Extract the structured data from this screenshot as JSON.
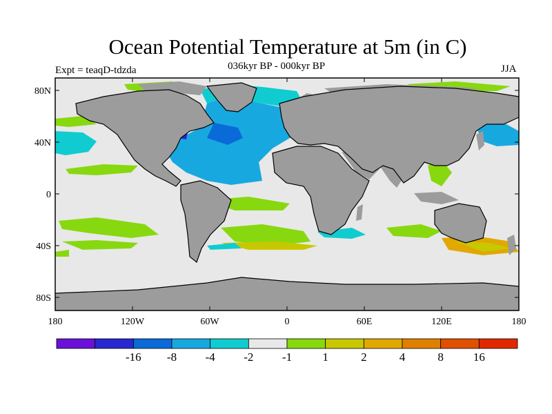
{
  "title": "Ocean Potential Temperature at 5m (in C)",
  "subtitle": "036kyr BP - 000kyr BP",
  "left_label": "Expt = teaqD-tdzda",
  "right_label": "JJA",
  "colors": {
    "land": "#9c9c9c",
    "ocean_neutral": "#e8e8e8",
    "coast": "#000000"
  },
  "map": {
    "lat_ticks": [
      "80N",
      "40N",
      "0",
      "40S",
      "80S"
    ],
    "lon_ticks": [
      "180",
      "120W",
      "60W",
      "0",
      "60E",
      "120E",
      "180"
    ]
  },
  "legend": {
    "colors": [
      "#6b10d8",
      "#2828d0",
      "#0a6ad8",
      "#18a8e0",
      "#10ccd0",
      "#e8e8e8",
      "#88d810",
      "#c8c800",
      "#e0a800",
      "#e08000",
      "#e05000",
      "#e02800"
    ],
    "labels": [
      "-16",
      "-8",
      "-4",
      "-2",
      "-1",
      "1",
      "2",
      "4",
      "8",
      "16"
    ]
  }
}
